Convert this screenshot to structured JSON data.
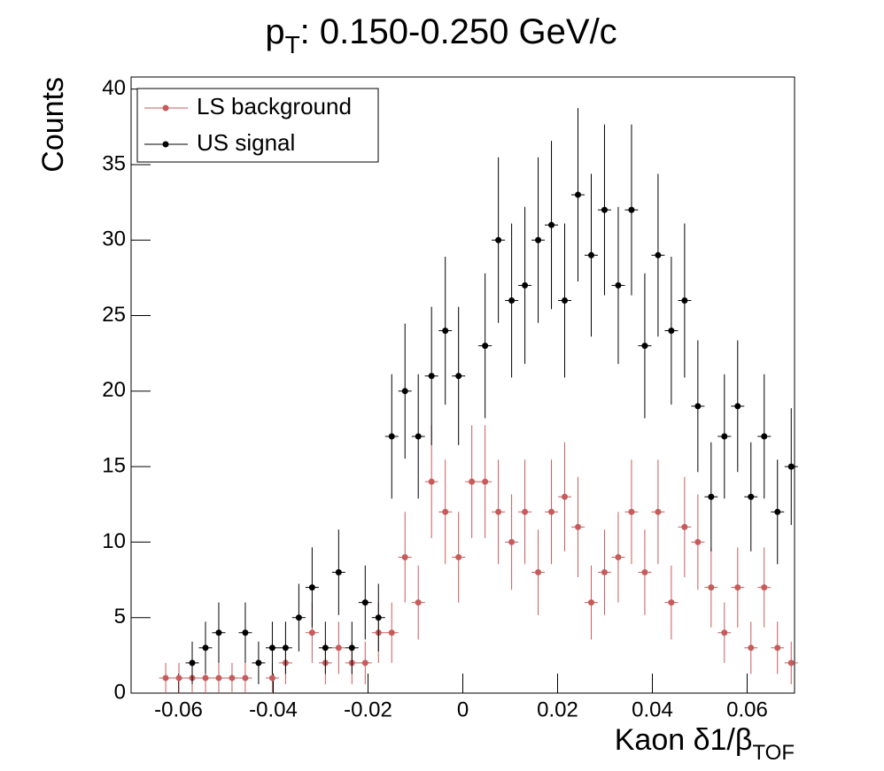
{
  "chart_data": {
    "type": "errorbar",
    "title": {
      "main": "p",
      "sub": "T",
      "rest": ": 0.150-0.250 GeV/c"
    },
    "x_label": {
      "main": "Kaon δ1/β",
      "sub": "TOF"
    },
    "y_label": "Counts",
    "xlim": [
      -0.07,
      0.07
    ],
    "ylim": [
      0,
      40.8
    ],
    "xticks": [
      -0.06,
      -0.04,
      -0.02,
      0,
      0.02,
      0.04,
      0.06
    ],
    "yticks": [
      0,
      5,
      10,
      15,
      20,
      25,
      30,
      35,
      40
    ],
    "legend": "top-left",
    "x_error": 0.0014,
    "x": [
      -0.0627,
      -0.0599,
      -0.0571,
      -0.0543,
      -0.0515,
      -0.0487,
      -0.0459,
      -0.0431,
      -0.0402,
      -0.0374,
      -0.0346,
      -0.0318,
      -0.029,
      -0.0262,
      -0.0234,
      -0.0206,
      -0.0178,
      -0.015,
      -0.0122,
      -0.0094,
      -0.0066,
      -0.0037,
      -0.0009,
      0.0019,
      0.0047,
      0.0075,
      0.0103,
      0.0131,
      0.0159,
      0.0187,
      0.0215,
      0.0243,
      0.0271,
      0.0299,
      0.0328,
      0.0356,
      0.0384,
      0.0412,
      0.044,
      0.0468,
      0.0496,
      0.0524,
      0.0552,
      0.058,
      0.0608,
      0.0636,
      0.0664,
      0.0693
    ],
    "series": [
      {
        "name": "LS background",
        "color": "#c75b5b",
        "values": [
          1,
          1,
          1,
          1,
          1,
          1,
          1,
          null,
          1,
          2,
          null,
          4,
          2,
          3,
          2,
          2,
          4,
          4,
          9,
          6,
          14,
          12,
          9,
          14,
          14,
          12,
          10,
          12,
          8,
          12,
          13,
          11,
          6,
          8,
          9,
          12,
          8,
          12,
          6,
          11,
          10,
          7,
          4,
          7,
          3,
          7,
          3,
          2
        ],
        "errors": [
          1,
          1,
          1,
          1,
          1,
          1,
          1,
          null,
          1,
          1.41,
          null,
          2,
          1.41,
          1.73,
          1.41,
          1.41,
          2,
          2,
          3,
          2.45,
          3.74,
          3.46,
          3,
          3.74,
          3.74,
          3.46,
          3.16,
          3.46,
          2.83,
          3.46,
          3.61,
          3.32,
          2.45,
          2.83,
          3,
          3.46,
          2.83,
          3.46,
          2.45,
          3.32,
          3.16,
          2.65,
          2,
          2.65,
          1.73,
          2.65,
          1.73,
          1.41
        ]
      },
      {
        "name": "US signal",
        "color": "#000000",
        "values": [
          null,
          null,
          2,
          3,
          4,
          null,
          4,
          2,
          3,
          3,
          5,
          7,
          3,
          8,
          3,
          6,
          5,
          17,
          20,
          17,
          21,
          24,
          21,
          null,
          23,
          30,
          26,
          27,
          30,
          31,
          26,
          33,
          29,
          32,
          27,
          32,
          23,
          29,
          24,
          26,
          19,
          13,
          17,
          19,
          13,
          17,
          12,
          15
        ],
        "errors": [
          null,
          null,
          1.41,
          1.73,
          2,
          null,
          2,
          1.41,
          1.73,
          1.73,
          2.24,
          2.65,
          1.73,
          2.83,
          1.73,
          2.45,
          2.24,
          4.12,
          4.47,
          4.12,
          4.58,
          4.9,
          4.58,
          null,
          4.8,
          5.48,
          5.1,
          5.2,
          5.48,
          5.57,
          5.1,
          5.74,
          5.39,
          5.66,
          5.2,
          5.66,
          4.8,
          5.39,
          4.9,
          5.1,
          4.36,
          3.61,
          4.12,
          4.36,
          3.61,
          4.12,
          3.46,
          3.87
        ]
      }
    ]
  }
}
